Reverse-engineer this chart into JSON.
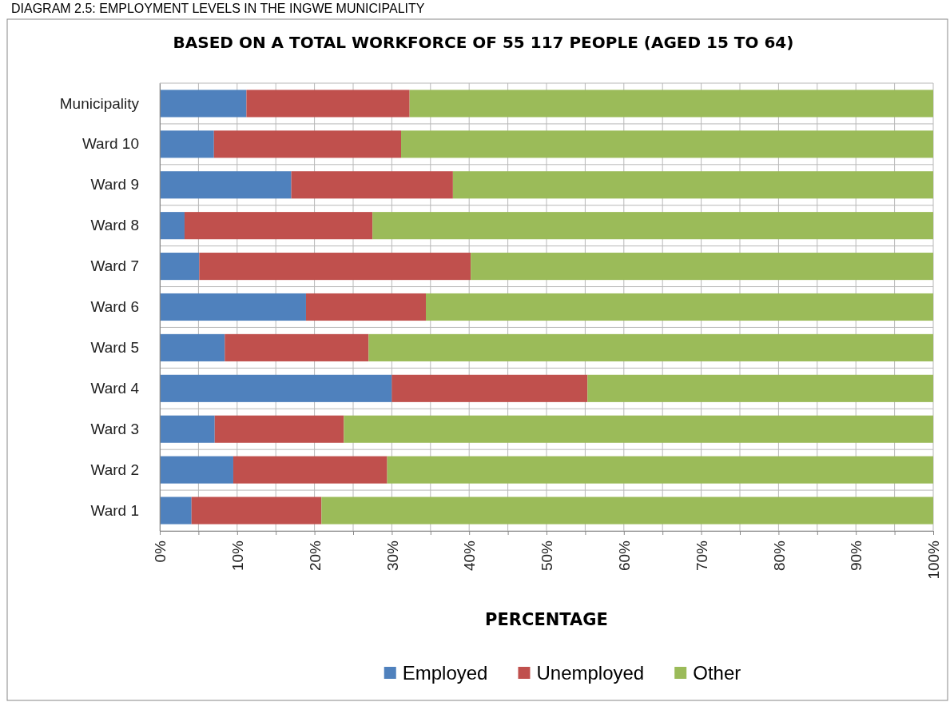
{
  "chart_data": {
    "type": "bar",
    "orientation": "horizontal",
    "stacked": true,
    "title": "BASED ON A TOTAL WORKFORCE OF 55 117 PEOPLE (AGED 15 TO 64)",
    "xlabel": "PERCENTAGE",
    "annotations": [
      "DIAGRAM 2.5: EMPLOYMENT LEVELS IN THE INGWE MUNICIPALITY"
    ],
    "categories": [
      "Municipality",
      "Ward 10",
      "Ward 9",
      "Ward 8",
      "Ward 7",
      "Ward 6",
      "Ward 5",
      "Ward 4",
      "Ward 3",
      "Ward 2",
      "Ward 1"
    ],
    "series": [
      {
        "name": "Employed",
        "color": "#4f81bd",
        "values": [
          11.2,
          7.0,
          17.0,
          3.2,
          5.1,
          18.9,
          8.4,
          30.0,
          7.1,
          9.5,
          4.1
        ]
      },
      {
        "name": "Unemployed",
        "color": "#c0504d",
        "values": [
          21.1,
          24.2,
          20.9,
          24.3,
          35.1,
          15.5,
          18.6,
          25.3,
          16.7,
          19.9,
          16.8
        ]
      },
      {
        "name": "Other",
        "color": "#9bbb59",
        "values": [
          67.7,
          68.8,
          62.1,
          72.5,
          59.8,
          65.6,
          73.0,
          44.7,
          76.2,
          70.6,
          79.1
        ]
      }
    ],
    "xlim": [
      0,
      100
    ],
    "xticks": [
      {
        "value": 0,
        "label": "0%"
      },
      {
        "value": 5,
        "label": null
      },
      {
        "value": 10,
        "label": "10%"
      },
      {
        "value": 15,
        "label": null
      },
      {
        "value": 20,
        "label": "20%"
      },
      {
        "value": 25,
        "label": null
      },
      {
        "value": 30,
        "label": "30%"
      },
      {
        "value": 35,
        "label": null
      },
      {
        "value": 40,
        "label": "40%"
      },
      {
        "value": 45,
        "label": null
      },
      {
        "value": 50,
        "label": "50%"
      },
      {
        "value": 55,
        "label": null
      },
      {
        "value": 60,
        "label": "60%"
      },
      {
        "value": 65,
        "label": null
      },
      {
        "value": 70,
        "label": "70%"
      },
      {
        "value": 75,
        "label": null
      },
      {
        "value": 80,
        "label": "80%"
      },
      {
        "value": 85,
        "label": null
      },
      {
        "value": 90,
        "label": "90%"
      },
      {
        "value": 95,
        "label": null
      },
      {
        "value": 100,
        "label": "100%"
      }
    ],
    "grid": "x",
    "legend": "bottom"
  }
}
